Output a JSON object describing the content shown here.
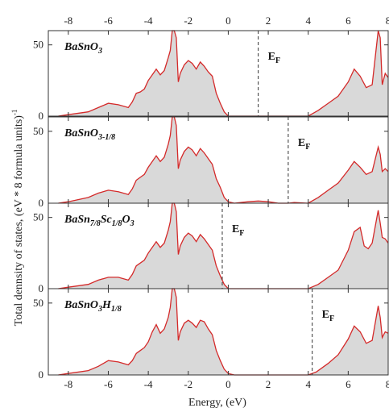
{
  "chart_data": {
    "type": "area",
    "xlabel": "Energy, (eV)",
    "ylabel": "Total dennsity of states, (eV * 8 formula units)",
    "ylabel_sup": "-1",
    "xlim": [
      -9,
      8
    ],
    "x_ticks": [
      -8,
      -6,
      -4,
      -2,
      0,
      2,
      4,
      6,
      8
    ],
    "fill_color": "#d9d9d9",
    "line_color": "#d42a2a",
    "panels": [
      {
        "label": "BaSnO",
        "label_sub1": "3",
        "label_mid": "",
        "label_sub2": "",
        "label_tail": "",
        "label_sub3": "",
        "ef_label": "E",
        "ef_sub": "F",
        "fermi_level": 1.5,
        "ylim": [
          0,
          60
        ],
        "y_ticks": [
          0,
          50
        ],
        "dos": [
          [
            -8.5,
            0
          ],
          [
            -8,
            1
          ],
          [
            -7,
            3
          ],
          [
            -6.5,
            6
          ],
          [
            -6,
            9
          ],
          [
            -5.5,
            8
          ],
          [
            -5,
            6
          ],
          [
            -4.8,
            10
          ],
          [
            -4.6,
            16
          ],
          [
            -4.4,
            17
          ],
          [
            -4.2,
            19
          ],
          [
            -4,
            25
          ],
          [
            -3.8,
            29
          ],
          [
            -3.6,
            33
          ],
          [
            -3.4,
            29
          ],
          [
            -3.2,
            32
          ],
          [
            -3,
            41
          ],
          [
            -2.9,
            46
          ],
          [
            -2.8,
            62
          ],
          [
            -2.7,
            63
          ],
          [
            -2.6,
            55
          ],
          [
            -2.5,
            24
          ],
          [
            -2.4,
            30
          ],
          [
            -2.2,
            36
          ],
          [
            -2,
            39
          ],
          [
            -1.8,
            37
          ],
          [
            -1.6,
            33
          ],
          [
            -1.4,
            38
          ],
          [
            -1.2,
            35
          ],
          [
            -1,
            31
          ],
          [
            -0.8,
            28
          ],
          [
            -0.6,
            16
          ],
          [
            -0.4,
            9
          ],
          [
            -0.2,
            3
          ],
          [
            0,
            0
          ],
          [
            1.5,
            0
          ],
          [
            4,
            0
          ],
          [
            4.5,
            4
          ],
          [
            5,
            9
          ],
          [
            5.5,
            14
          ],
          [
            6,
            24
          ],
          [
            6.3,
            33
          ],
          [
            6.6,
            28
          ],
          [
            6.9,
            20
          ],
          [
            7.2,
            22
          ],
          [
            7.5,
            63
          ],
          [
            7.6,
            55
          ],
          [
            7.7,
            22
          ],
          [
            7.85,
            30
          ],
          [
            8,
            27
          ]
        ]
      },
      {
        "label": "BaSnO",
        "label_sub1": "3-1/8",
        "label_mid": "",
        "label_sub2": "",
        "label_tail": "",
        "label_sub3": "",
        "ef_label": "E",
        "ef_sub": "F",
        "fermi_level": 3.0,
        "ylim": [
          0,
          60
        ],
        "y_ticks": [
          0,
          50
        ],
        "dos": [
          [
            -8.5,
            0
          ],
          [
            -8,
            1
          ],
          [
            -7,
            4
          ],
          [
            -6.5,
            7
          ],
          [
            -6,
            9
          ],
          [
            -5.5,
            8
          ],
          [
            -5,
            6
          ],
          [
            -4.8,
            10
          ],
          [
            -4.6,
            16
          ],
          [
            -4.4,
            18
          ],
          [
            -4.2,
            20
          ],
          [
            -4,
            25
          ],
          [
            -3.8,
            29
          ],
          [
            -3.6,
            33
          ],
          [
            -3.4,
            29
          ],
          [
            -3.2,
            32
          ],
          [
            -3,
            41
          ],
          [
            -2.9,
            47
          ],
          [
            -2.8,
            62
          ],
          [
            -2.7,
            62
          ],
          [
            -2.6,
            54
          ],
          [
            -2.5,
            24
          ],
          [
            -2.4,
            30
          ],
          [
            -2.2,
            36
          ],
          [
            -2,
            39
          ],
          [
            -1.8,
            37
          ],
          [
            -1.6,
            33
          ],
          [
            -1.4,
            38
          ],
          [
            -1.2,
            35
          ],
          [
            -1,
            31
          ],
          [
            -0.8,
            27
          ],
          [
            -0.6,
            17
          ],
          [
            -0.4,
            11
          ],
          [
            -0.2,
            4
          ],
          [
            0,
            1
          ],
          [
            0.3,
            0
          ],
          [
            1,
            1
          ],
          [
            1.5,
            1.5
          ],
          [
            2,
            1
          ],
          [
            2.5,
            0
          ],
          [
            3,
            0
          ],
          [
            3.3,
            0.5
          ],
          [
            4,
            0
          ],
          [
            4.5,
            4
          ],
          [
            5,
            9
          ],
          [
            5.5,
            14
          ],
          [
            6,
            23
          ],
          [
            6.3,
            29
          ],
          [
            6.6,
            25
          ],
          [
            6.9,
            20
          ],
          [
            7.2,
            22
          ],
          [
            7.5,
            39
          ],
          [
            7.6,
            34
          ],
          [
            7.7,
            22
          ],
          [
            7.85,
            24
          ],
          [
            8,
            22
          ]
        ]
      },
      {
        "label": "BaSn",
        "label_sub1": "7/8",
        "label_mid": "Sc",
        "label_sub2": "1/8",
        "label_tail": "O",
        "label_sub3": "3",
        "ef_label": "E",
        "ef_sub": "F",
        "fermi_level": -0.3,
        "ylim": [
          0,
          60
        ],
        "y_ticks": [
          0,
          50
        ],
        "dos": [
          [
            -8.5,
            0
          ],
          [
            -8,
            1
          ],
          [
            -7,
            3
          ],
          [
            -6.5,
            6
          ],
          [
            -6,
            8
          ],
          [
            -5.5,
            8
          ],
          [
            -5,
            6
          ],
          [
            -4.8,
            10
          ],
          [
            -4.6,
            16
          ],
          [
            -4.4,
            18
          ],
          [
            -4.2,
            20
          ],
          [
            -4,
            25
          ],
          [
            -3.8,
            29
          ],
          [
            -3.6,
            33
          ],
          [
            -3.4,
            29
          ],
          [
            -3.2,
            32
          ],
          [
            -3,
            41
          ],
          [
            -2.9,
            47
          ],
          [
            -2.8,
            62
          ],
          [
            -2.7,
            62
          ],
          [
            -2.6,
            54
          ],
          [
            -2.5,
            24
          ],
          [
            -2.4,
            30
          ],
          [
            -2.2,
            36
          ],
          [
            -2,
            39
          ],
          [
            -1.8,
            37
          ],
          [
            -1.6,
            33
          ],
          [
            -1.4,
            38
          ],
          [
            -1.2,
            35
          ],
          [
            -1,
            31
          ],
          [
            -0.8,
            27
          ],
          [
            -0.6,
            16
          ],
          [
            -0.4,
            9
          ],
          [
            -0.2,
            3
          ],
          [
            0,
            0
          ],
          [
            4,
            0
          ],
          [
            4.5,
            3
          ],
          [
            5,
            8
          ],
          [
            5.5,
            13
          ],
          [
            6,
            27
          ],
          [
            6.3,
            40
          ],
          [
            6.6,
            43
          ],
          [
            6.8,
            30
          ],
          [
            7.0,
            28
          ],
          [
            7.2,
            32
          ],
          [
            7.5,
            55
          ],
          [
            7.6,
            46
          ],
          [
            7.7,
            36
          ],
          [
            7.85,
            35
          ],
          [
            8,
            32
          ]
        ]
      },
      {
        "label": "BaSnO",
        "label_sub1": "3",
        "label_mid": "H",
        "label_sub2": "1/8",
        "label_tail": "",
        "label_sub3": "",
        "ef_label": "E",
        "ef_sub": "F",
        "fermi_level": 4.2,
        "ylim": [
          0,
          60
        ],
        "y_ticks": [
          0,
          50
        ],
        "dos": [
          [
            -8.5,
            0
          ],
          [
            -8,
            1
          ],
          [
            -7,
            3
          ],
          [
            -6.5,
            6
          ],
          [
            -6,
            10
          ],
          [
            -5.5,
            9
          ],
          [
            -5,
            7
          ],
          [
            -4.8,
            10
          ],
          [
            -4.6,
            15
          ],
          [
            -4.4,
            17
          ],
          [
            -4.2,
            19
          ],
          [
            -4,
            23
          ],
          [
            -3.8,
            30
          ],
          [
            -3.6,
            35
          ],
          [
            -3.4,
            29
          ],
          [
            -3.2,
            32
          ],
          [
            -3,
            40
          ],
          [
            -2.9,
            47
          ],
          [
            -2.8,
            62
          ],
          [
            -2.7,
            62
          ],
          [
            -2.6,
            54
          ],
          [
            -2.5,
            24
          ],
          [
            -2.4,
            30
          ],
          [
            -2.2,
            36
          ],
          [
            -2,
            38
          ],
          [
            -1.8,
            36
          ],
          [
            -1.6,
            33
          ],
          [
            -1.4,
            38
          ],
          [
            -1.2,
            37
          ],
          [
            -1,
            32
          ],
          [
            -0.8,
            28
          ],
          [
            -0.6,
            17
          ],
          [
            -0.4,
            10
          ],
          [
            -0.2,
            4
          ],
          [
            0,
            1
          ],
          [
            0.3,
            0
          ],
          [
            4,
            0
          ],
          [
            4.4,
            2
          ],
          [
            5,
            8
          ],
          [
            5.5,
            14
          ],
          [
            6,
            25
          ],
          [
            6.3,
            34
          ],
          [
            6.6,
            30
          ],
          [
            6.9,
            22
          ],
          [
            7.2,
            24
          ],
          [
            7.5,
            48
          ],
          [
            7.6,
            40
          ],
          [
            7.7,
            26
          ],
          [
            7.85,
            30
          ],
          [
            8,
            29
          ]
        ]
      }
    ]
  }
}
